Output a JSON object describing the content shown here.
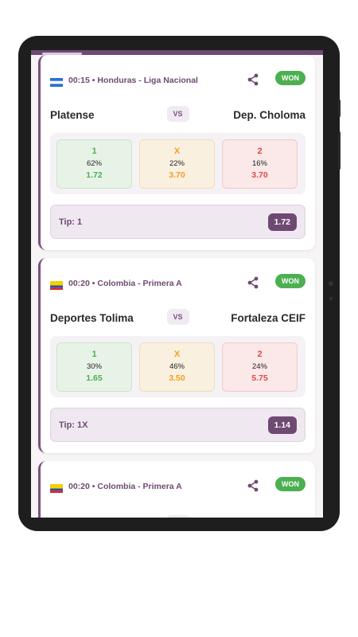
{
  "matches": [
    {
      "country": "Honduras",
      "time_league": "00:15 • Honduras - Liga Nacional",
      "status": "WON",
      "home": "Platense",
      "vs": "VS",
      "away": "Dep. Choloma",
      "odds": [
        {
          "label": "1",
          "pct": "62%",
          "value": "1.72"
        },
        {
          "label": "X",
          "pct": "22%",
          "value": "3.70"
        },
        {
          "label": "2",
          "pct": "16%",
          "value": "3.70"
        }
      ],
      "tip": "Tip: 1",
      "tip_odd": "1.72"
    },
    {
      "country": "Colombia",
      "time_league": "00:20 • Colombia - Primera A",
      "status": "WON",
      "home": "Deportes Tolima",
      "vs": "VS",
      "away": "Fortaleza CEIF",
      "odds": [
        {
          "label": "1",
          "pct": "30%",
          "value": "1.65"
        },
        {
          "label": "X",
          "pct": "46%",
          "value": "3.50"
        },
        {
          "label": "2",
          "pct": "24%",
          "value": "5.75"
        }
      ],
      "tip": "Tip: 1X",
      "tip_odd": "1.14"
    },
    {
      "country": "Colombia",
      "time_league": "00:20 • Colombia - Primera A",
      "status": "WON"
    }
  ],
  "colors": {
    "accent": "#6e4a72",
    "won": "#4caf50",
    "home_win": "#4caf50",
    "draw": "#f0a020",
    "away_win": "#e04848"
  },
  "icons": {
    "share": "share-icon",
    "flag_honduras": "honduras-flag-icon",
    "flag_colombia": "colombia-flag-icon"
  }
}
